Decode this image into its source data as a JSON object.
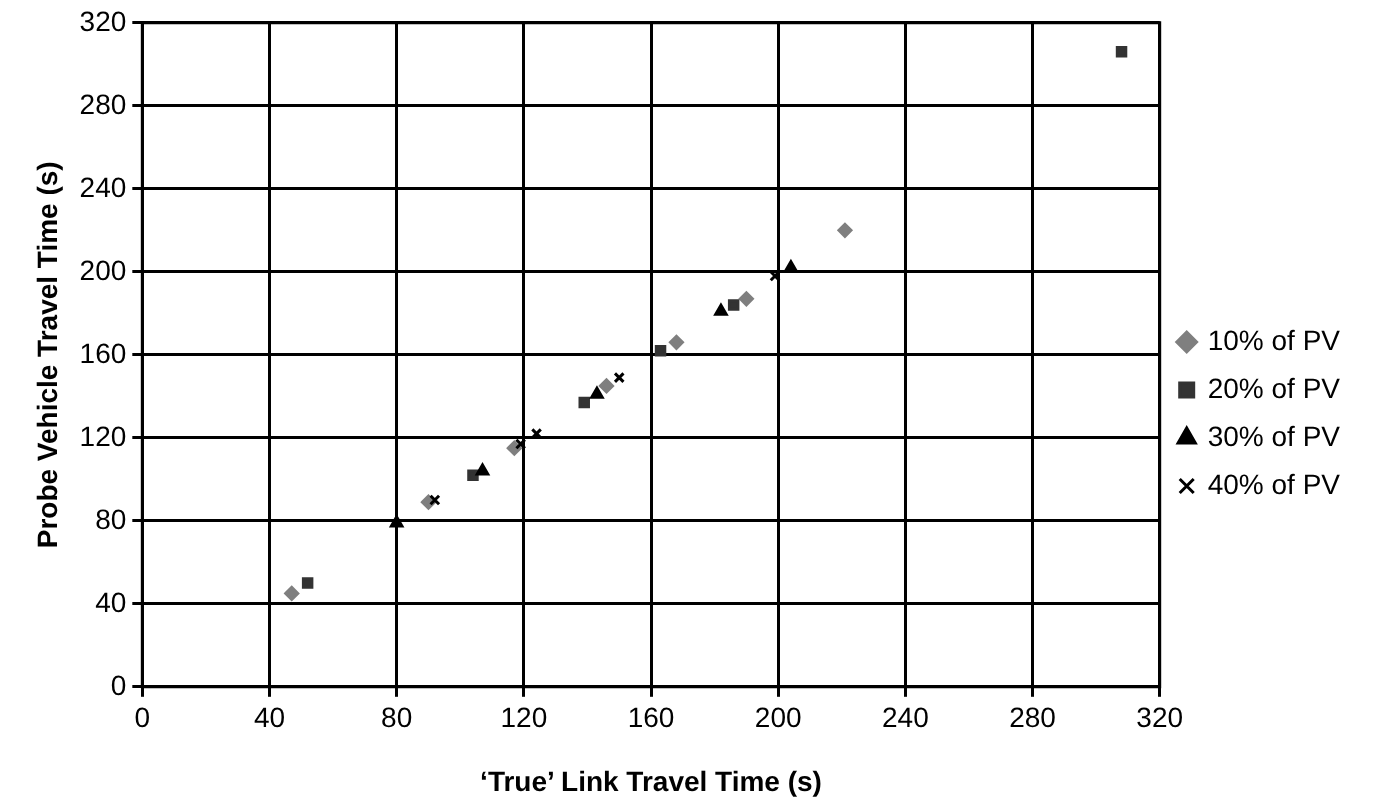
{
  "chart_data": {
    "type": "scatter",
    "xlabel": "‘True’ Link Travel Time (s)",
    "ylabel": "Probe Vehicle Travel Time (s)",
    "xlim": [
      0,
      320
    ],
    "xticks": [
      0,
      40,
      80,
      120,
      160,
      200,
      240,
      280,
      320
    ],
    "ylim": [
      0,
      320
    ],
    "yticks": [
      0,
      40,
      80,
      120,
      160,
      200,
      240,
      280,
      320
    ],
    "grid": true,
    "legend": "right",
    "series": [
      {
        "name": "10% of PV",
        "color": "#7f7f7f",
        "marker": "diamond",
        "x": [
          47,
          90,
          117,
          146,
          168,
          190,
          221
        ],
        "values": [
          45,
          89,
          115,
          145,
          166,
          187,
          220
        ]
      },
      {
        "name": "20% of PV",
        "color": "#333333",
        "marker": "square",
        "x": [
          52,
          104,
          139,
          163,
          186,
          308
        ],
        "values": [
          50,
          102,
          137,
          162,
          184,
          306
        ]
      },
      {
        "name": "30% of PV",
        "color": "#000000",
        "marker": "triangle",
        "x": [
          80,
          107,
          143,
          182,
          204
        ],
        "values": [
          79,
          104,
          141,
          181,
          202
        ]
      },
      {
        "name": "40% of PV",
        "color": "#000000",
        "marker": "cross",
        "x": [
          92,
          119,
          124,
          150,
          199
        ],
        "values": [
          90,
          117,
          122,
          149,
          198
        ]
      }
    ]
  }
}
